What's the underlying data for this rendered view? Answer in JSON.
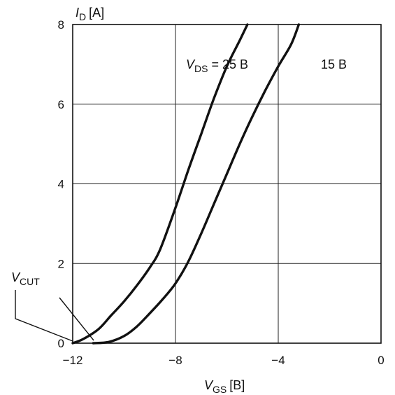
{
  "chart_data": {
    "type": "line",
    "x_axis": {
      "label_main": "V",
      "label_sub": "GS",
      "label_unit": "[B]",
      "range": [
        -12,
        0
      ],
      "ticks": [
        -12,
        -8,
        -4,
        0
      ],
      "tick_labels": [
        "−12",
        "−8",
        "−4",
        "0"
      ]
    },
    "y_axis": {
      "label_main": "I",
      "label_sub": "D",
      "label_unit": "[A]",
      "range": [
        0,
        8
      ],
      "ticks": [
        0,
        2,
        4,
        6,
        8
      ],
      "tick_labels": [
        "0",
        "2",
        "4",
        "6",
        "8"
      ]
    },
    "grid": true,
    "series": [
      {
        "name": "V_DS = 25 B",
        "label_main": "V",
        "label_sub": "DS",
        "label_text": " = 25 B",
        "points": [
          [
            -12,
            0
          ],
          [
            -11.6,
            0.1
          ],
          [
            -11,
            0.35
          ],
          [
            -10.5,
            0.7
          ],
          [
            -10,
            1.05
          ],
          [
            -9.5,
            1.45
          ],
          [
            -9,
            1.9
          ],
          [
            -8.6,
            2.35
          ],
          [
            -8,
            3.4
          ],
          [
            -7.5,
            4.35
          ],
          [
            -7,
            5.25
          ],
          [
            -6.5,
            6.15
          ],
          [
            -6,
            6.95
          ],
          [
            -5.5,
            7.6
          ],
          [
            -5.2,
            8.0
          ]
        ]
      },
      {
        "name": "15 B",
        "label_main": "",
        "label_sub": "",
        "label_text": "15 B",
        "points": [
          [
            -11.2,
            0
          ],
          [
            -10.6,
            0.03
          ],
          [
            -10,
            0.18
          ],
          [
            -9.5,
            0.42
          ],
          [
            -9,
            0.75
          ],
          [
            -8.5,
            1.1
          ],
          [
            -8,
            1.5
          ],
          [
            -7.5,
            2.05
          ],
          [
            -7,
            2.75
          ],
          [
            -6.5,
            3.5
          ],
          [
            -6,
            4.25
          ],
          [
            -5.5,
            5.0
          ],
          [
            -5,
            5.7
          ],
          [
            -4.5,
            6.35
          ],
          [
            -4,
            6.95
          ],
          [
            -3.5,
            7.5
          ],
          [
            -3.2,
            8.0
          ]
        ]
      }
    ],
    "annotation": {
      "label_main": "V",
      "label_sub": "CUT",
      "points_to_x": -11.2
    }
  }
}
